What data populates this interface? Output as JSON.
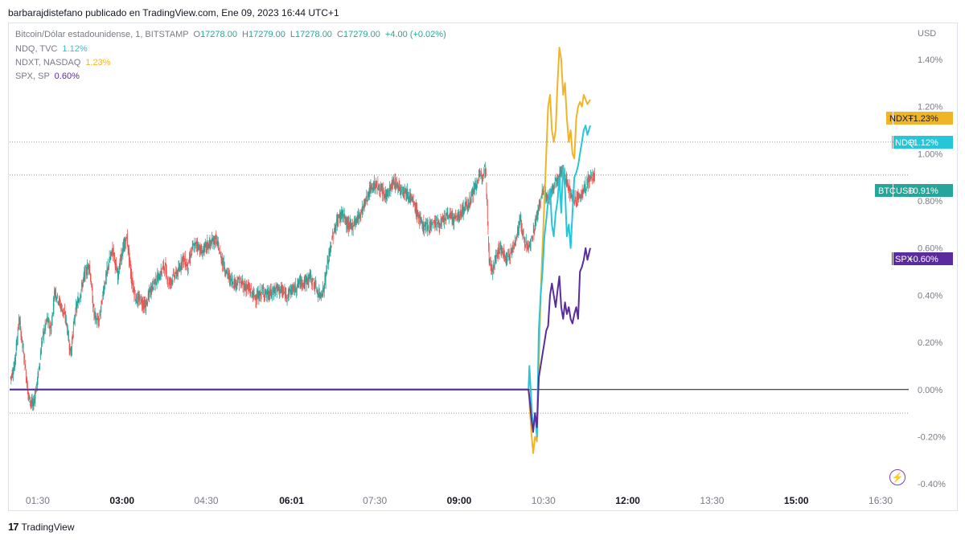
{
  "header": {
    "credit": "barbarajdistefano publicado en TradingView.com, Ene 09, 2023 16:44 UTC+1"
  },
  "legend": {
    "main": {
      "name": "Bitcoin/Dólar estadounidense, 1, BITSTAMP",
      "o_label": "O",
      "o": "17278.00",
      "h_label": "H",
      "h": "17279.00",
      "l_label": "L",
      "l": "17278.00",
      "c_label": "C",
      "c": "17279.00",
      "change": "+4.00 (+0.02%)"
    },
    "compare": [
      {
        "name": "NDQ, TVC",
        "value": "1.12%",
        "color": "#26c6da"
      },
      {
        "name": "NDXT, NASDAQ",
        "value": "1.23%",
        "color": "#f0b429"
      },
      {
        "name": "SPX, SP",
        "value": "0.60%",
        "color": "#5b2c9e"
      }
    ]
  },
  "axis": {
    "unit": "USD"
  },
  "footer": {
    "brand": "TradingView"
  },
  "colors": {
    "up": "#26a69a",
    "down": "#ef5350",
    "btc": "#26a69a",
    "ndq": "#26c6da",
    "ndxt": "#f0b429",
    "spx": "#5b2c9e"
  },
  "chart_data": {
    "type": "line",
    "y_unit": "%",
    "ylim": [
      -0.42,
      1.55
    ],
    "yticks": [
      {
        "v": 1.4,
        "label": "1.40%"
      },
      {
        "v": 1.2,
        "label": "1.20%"
      },
      {
        "v": 1.0,
        "label": "1.00%"
      },
      {
        "v": 0.8,
        "label": "0.80%"
      },
      {
        "v": 0.6,
        "label": "0.60%"
      },
      {
        "v": 0.4,
        "label": "0.40%"
      },
      {
        "v": 0.2,
        "label": "0.20%"
      },
      {
        "v": 0.0,
        "label": "0.00%"
      },
      {
        "v": -0.2,
        "label": "-0.20%"
      },
      {
        "v": -0.4,
        "label": "-0.40%"
      }
    ],
    "xlim_min": [
      60,
      1020
    ],
    "xticks": [
      {
        "min": 90,
        "label": "01:30",
        "bold": false
      },
      {
        "min": 180,
        "label": "03:00",
        "bold": true
      },
      {
        "min": 270,
        "label": "04:30",
        "bold": false
      },
      {
        "min": 361,
        "label": "06:01",
        "bold": true
      },
      {
        "min": 450,
        "label": "07:30",
        "bold": false
      },
      {
        "min": 540,
        "label": "09:00",
        "bold": true
      },
      {
        "min": 630,
        "label": "10:30",
        "bold": false
      },
      {
        "min": 720,
        "label": "12:00",
        "bold": true
      },
      {
        "min": 810,
        "label": "13:30",
        "bold": false
      },
      {
        "min": 900,
        "label": "15:00",
        "bold": true
      },
      {
        "min": 990,
        "label": "16:30",
        "bold": false
      }
    ],
    "series": [
      {
        "name": "BTCUSD",
        "style": "candles",
        "path": [
          [
            61,
            0.05
          ],
          [
            65,
            0.1
          ],
          [
            70,
            0.3
          ],
          [
            75,
            0.15
          ],
          [
            80,
            -0.03
          ],
          [
            85,
            -0.07
          ],
          [
            90,
            0.05
          ],
          [
            95,
            0.22
          ],
          [
            100,
            0.3
          ],
          [
            104,
            0.25
          ],
          [
            108,
            0.42
          ],
          [
            115,
            0.35
          ],
          [
            120,
            0.3
          ],
          [
            125,
            0.15
          ],
          [
            130,
            0.33
          ],
          [
            135,
            0.4
          ],
          [
            140,
            0.49
          ],
          [
            145,
            0.53
          ],
          [
            150,
            0.32
          ],
          [
            155,
            0.28
          ],
          [
            160,
            0.42
          ],
          [
            165,
            0.52
          ],
          [
            170,
            0.6
          ],
          [
            175,
            0.48
          ],
          [
            180,
            0.58
          ],
          [
            185,
            0.65
          ],
          [
            190,
            0.47
          ],
          [
            195,
            0.38
          ],
          [
            200,
            0.38
          ],
          [
            205,
            0.35
          ],
          [
            210,
            0.42
          ],
          [
            215,
            0.46
          ],
          [
            220,
            0.48
          ],
          [
            225,
            0.53
          ],
          [
            230,
            0.45
          ],
          [
            235,
            0.48
          ],
          [
            240,
            0.5
          ],
          [
            245,
            0.56
          ],
          [
            250,
            0.52
          ],
          [
            255,
            0.6
          ],
          [
            260,
            0.62
          ],
          [
            265,
            0.58
          ],
          [
            270,
            0.61
          ],
          [
            275,
            0.62
          ],
          [
            280,
            0.64
          ],
          [
            285,
            0.57
          ],
          [
            290,
            0.51
          ],
          [
            295,
            0.47
          ],
          [
            300,
            0.45
          ],
          [
            305,
            0.46
          ],
          [
            310,
            0.44
          ],
          [
            315,
            0.43
          ],
          [
            320,
            0.4
          ],
          [
            325,
            0.39
          ],
          [
            330,
            0.42
          ],
          [
            335,
            0.4
          ],
          [
            340,
            0.41
          ],
          [
            345,
            0.43
          ],
          [
            350,
            0.42
          ],
          [
            355,
            0.4
          ],
          [
            360,
            0.42
          ],
          [
            365,
            0.43
          ],
          [
            370,
            0.46
          ],
          [
            375,
            0.45
          ],
          [
            380,
            0.48
          ],
          [
            385,
            0.45
          ],
          [
            390,
            0.4
          ],
          [
            395,
            0.42
          ],
          [
            400,
            0.55
          ],
          [
            405,
            0.65
          ],
          [
            410,
            0.72
          ],
          [
            415,
            0.75
          ],
          [
            420,
            0.7
          ],
          [
            425,
            0.69
          ],
          [
            430,
            0.72
          ],
          [
            435,
            0.75
          ],
          [
            440,
            0.8
          ],
          [
            445,
            0.85
          ],
          [
            450,
            0.87
          ],
          [
            455,
            0.85
          ],
          [
            460,
            0.82
          ],
          [
            465,
            0.84
          ],
          [
            470,
            0.88
          ],
          [
            475,
            0.86
          ],
          [
            480,
            0.85
          ],
          [
            485,
            0.83
          ],
          [
            490,
            0.8
          ],
          [
            495,
            0.75
          ],
          [
            500,
            0.7
          ],
          [
            505,
            0.69
          ],
          [
            510,
            0.7
          ],
          [
            515,
            0.71
          ],
          [
            520,
            0.7
          ],
          [
            525,
            0.73
          ],
          [
            530,
            0.74
          ],
          [
            535,
            0.72
          ],
          [
            540,
            0.74
          ],
          [
            545,
            0.77
          ],
          [
            550,
            0.79
          ],
          [
            555,
            0.84
          ],
          [
            560,
            0.89
          ],
          [
            565,
            0.92
          ],
          [
            568,
            0.95
          ],
          [
            572,
            0.55
          ],
          [
            576,
            0.5
          ],
          [
            580,
            0.58
          ],
          [
            585,
            0.6
          ],
          [
            590,
            0.55
          ],
          [
            595,
            0.58
          ],
          [
            600,
            0.63
          ],
          [
            605,
            0.72
          ],
          [
            610,
            0.62
          ],
          [
            615,
            0.6
          ],
          [
            620,
            0.68
          ],
          [
            625,
            0.78
          ],
          [
            630,
            0.85
          ],
          [
            635,
            0.8
          ],
          [
            640,
            0.85
          ],
          [
            645,
            0.9
          ],
          [
            650,
            0.93
          ],
          [
            655,
            0.88
          ],
          [
            660,
            0.82
          ],
          [
            665,
            0.8
          ],
          [
            670,
            0.83
          ],
          [
            675,
            0.86
          ],
          [
            680,
            0.9
          ],
          [
            685,
            0.91
          ]
        ]
      },
      {
        "name": "NDXT",
        "style": "line",
        "color": "#f0b429",
        "path": [
          [
            60,
            0.0
          ],
          [
            614,
            0.0
          ],
          [
            615,
            -0.05
          ],
          [
            617,
            -0.18
          ],
          [
            619,
            -0.27
          ],
          [
            621,
            -0.2
          ],
          [
            623,
            -0.22
          ],
          [
            625,
            0.1
          ],
          [
            627,
            0.4
          ],
          [
            629,
            0.6
          ],
          [
            631,
            0.8
          ],
          [
            633,
            1.0
          ],
          [
            635,
            1.2
          ],
          [
            637,
            1.25
          ],
          [
            639,
            1.1
          ],
          [
            641,
            1.05
          ],
          [
            643,
            1.1
          ],
          [
            645,
            1.3
          ],
          [
            647,
            1.45
          ],
          [
            649,
            1.4
          ],
          [
            651,
            1.25
          ],
          [
            653,
            1.3
          ],
          [
            655,
            1.15
          ],
          [
            657,
            1.05
          ],
          [
            659,
            1.1
          ],
          [
            661,
            1.0
          ],
          [
            663,
            0.98
          ],
          [
            665,
            1.15
          ],
          [
            667,
            1.2
          ],
          [
            669,
            1.22
          ],
          [
            671,
            1.2
          ],
          [
            673,
            1.25
          ],
          [
            675,
            1.23
          ],
          [
            677,
            1.21
          ],
          [
            680,
            1.23
          ]
        ]
      },
      {
        "name": "NDQ",
        "style": "line",
        "color": "#26c6da",
        "path": [
          [
            60,
            0.0
          ],
          [
            614,
            0.0
          ],
          [
            615,
            0.1
          ],
          [
            617,
            -0.05
          ],
          [
            619,
            -0.17
          ],
          [
            621,
            -0.1
          ],
          [
            623,
            -0.2
          ],
          [
            625,
            0.25
          ],
          [
            627,
            0.4
          ],
          [
            629,
            0.5
          ],
          [
            631,
            0.65
          ],
          [
            633,
            0.72
          ],
          [
            635,
            0.8
          ],
          [
            637,
            0.85
          ],
          [
            639,
            0.7
          ],
          [
            641,
            0.65
          ],
          [
            643,
            0.75
          ],
          [
            645,
            0.8
          ],
          [
            647,
            0.9
          ],
          [
            649,
            0.75
          ],
          [
            651,
            0.95
          ],
          [
            653,
            0.85
          ],
          [
            655,
            0.65
          ],
          [
            657,
            0.7
          ],
          [
            659,
            0.6
          ],
          [
            661,
            0.75
          ],
          [
            663,
            0.9
          ],
          [
            665,
            0.92
          ],
          [
            667,
            0.95
          ],
          [
            669,
            1.0
          ],
          [
            671,
            1.05
          ],
          [
            673,
            1.1
          ],
          [
            675,
            1.12
          ],
          [
            677,
            1.08
          ],
          [
            680,
            1.12
          ]
        ]
      },
      {
        "name": "SPX",
        "style": "line",
        "color": "#5b2c9e",
        "path": [
          [
            60,
            0.0
          ],
          [
            614,
            0.0
          ],
          [
            615,
            -0.03
          ],
          [
            617,
            -0.12
          ],
          [
            619,
            -0.18
          ],
          [
            621,
            -0.1
          ],
          [
            623,
            -0.16
          ],
          [
            625,
            0.05
          ],
          [
            627,
            0.1
          ],
          [
            629,
            0.15
          ],
          [
            631,
            0.2
          ],
          [
            633,
            0.25
          ],
          [
            635,
            0.27
          ],
          [
            637,
            0.4
          ],
          [
            639,
            0.45
          ],
          [
            641,
            0.4
          ],
          [
            643,
            0.35
          ],
          [
            645,
            0.42
          ],
          [
            647,
            0.48
          ],
          [
            649,
            0.35
          ],
          [
            651,
            0.3
          ],
          [
            653,
            0.37
          ],
          [
            655,
            0.32
          ],
          [
            657,
            0.35
          ],
          [
            659,
            0.3
          ],
          [
            661,
            0.28
          ],
          [
            663,
            0.32
          ],
          [
            665,
            0.35
          ],
          [
            667,
            0.3
          ],
          [
            669,
            0.5
          ],
          [
            671,
            0.52
          ],
          [
            673,
            0.55
          ],
          [
            675,
            0.6
          ],
          [
            677,
            0.55
          ],
          [
            680,
            0.6
          ]
        ]
      }
    ],
    "price_tags": [
      {
        "name": "NDXT",
        "value": "+1.23%",
        "color": "#f0b429",
        "text_color": "#131722",
        "v": 1.23
      },
      {
        "name": "NDQ",
        "value": "+1.12%",
        "color": "#26c6da",
        "text_color": "#ffffff",
        "v": 1.12
      },
      {
        "name": "BTCUSD",
        "value": "+0.91%",
        "color": "#26a69a",
        "text_color": "#ffffff",
        "v": 0.91
      },
      {
        "name": "SPX",
        "value": "+0.60%",
        "color": "#5b2c9e",
        "text_color": "#ffffff",
        "v": 0.6
      }
    ],
    "ref_lines": [
      1.05,
      0.91,
      -0.1
    ],
    "grid": false
  }
}
